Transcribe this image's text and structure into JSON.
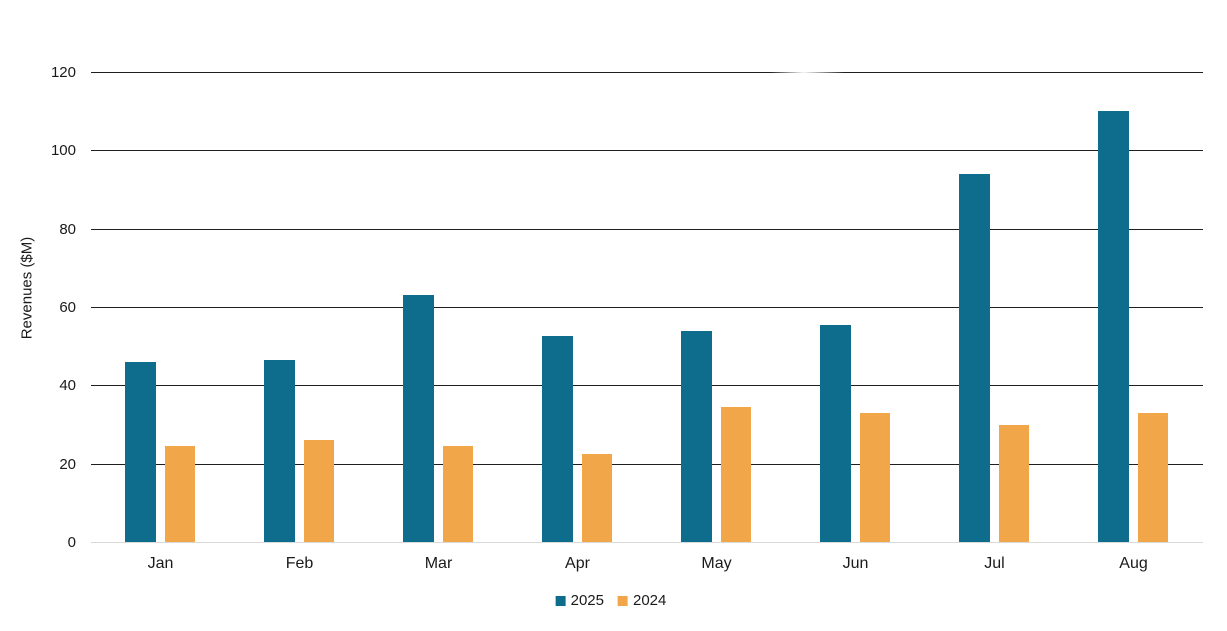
{
  "chart_data": {
    "type": "bar",
    "categories": [
      "Jan",
      "Feb",
      "Mar",
      "Apr",
      "May",
      "Jun",
      "Jul",
      "Aug"
    ],
    "series": [
      {
        "name": "2025",
        "color": "#0e6d8c",
        "values": [
          46,
          46.5,
          63,
          52.5,
          54,
          55.5,
          94,
          110
        ]
      },
      {
        "name": "2024",
        "color": "#f2a64a",
        "values": [
          24.5,
          26,
          24.5,
          22.5,
          34.5,
          33,
          30,
          33
        ]
      }
    ],
    "title": "",
    "xlabel": "",
    "ylabel": "Revenues ($M)",
    "ylim": [
      0,
      120
    ],
    "yticks": [
      0,
      20,
      40,
      60,
      80,
      100,
      120
    ],
    "grid": true,
    "legend_position": "bottom-center",
    "legend_entries": [
      "2025",
      "2024"
    ]
  },
  "colors": {
    "series_2025": "#0e6d8c",
    "series_2024": "#f2a64a",
    "gridline": "#1f1f1f",
    "baseline": "#d9d9d9",
    "text": "#1a1a1a",
    "background": "#ffffff"
  }
}
